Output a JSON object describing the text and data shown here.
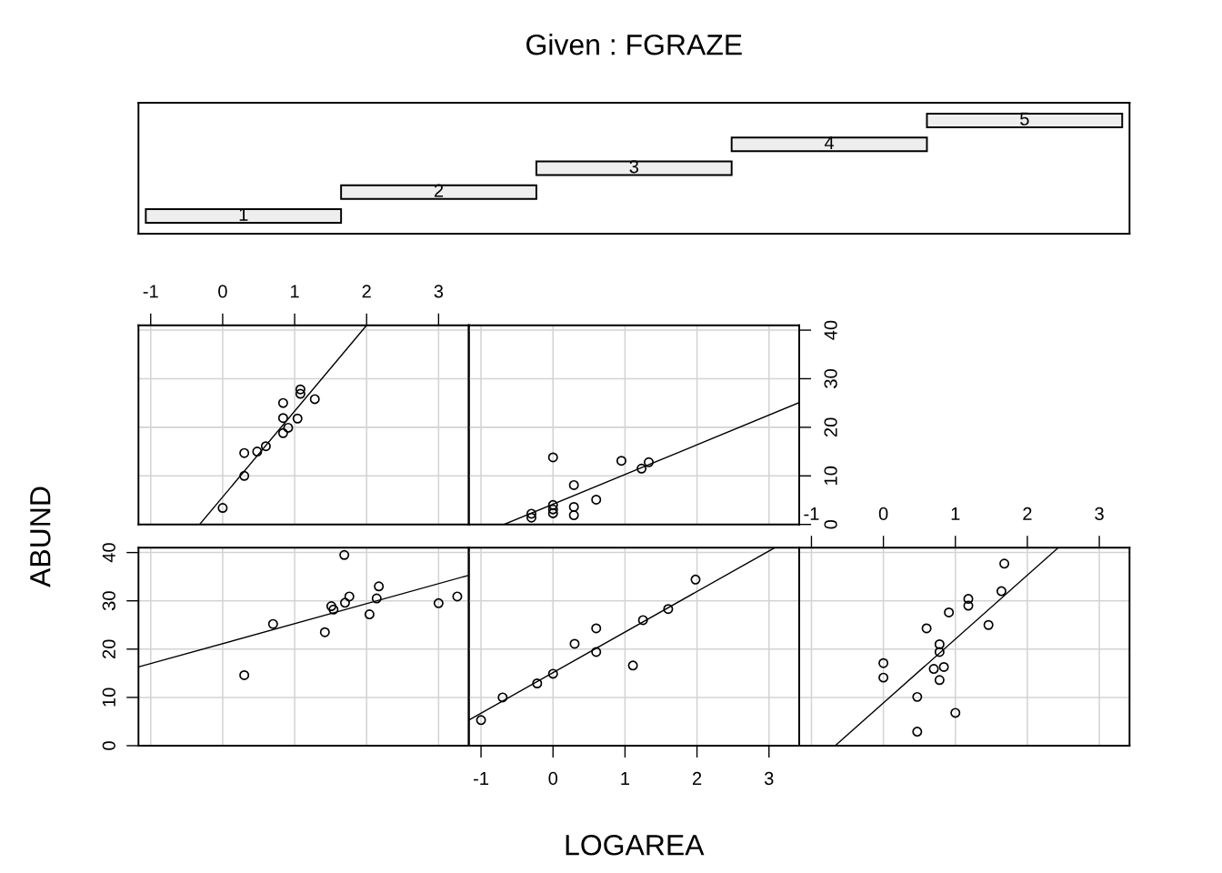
{
  "chart_data": [
    {
      "type": "other",
      "title": "Given : FGRAZE",
      "categories": [
        "1",
        "2",
        "3",
        "4",
        "5"
      ],
      "colors": [
        "#eeeeee",
        "#eeeeee",
        "#eeeeee",
        "#eeeeee",
        "#eeeeee"
      ]
    },
    {
      "type": "scatter",
      "grid": true,
      "tick_labels": "x",
      "xlim": [
        -1.17,
        3.42
      ],
      "xticks": [
        -1,
        0,
        1,
        2,
        3
      ],
      "ylim": [
        0,
        41
      ],
      "yticks": [
        0,
        10,
        20,
        30,
        40
      ],
      "series": [
        {
          "type": "scatter",
          "marker": "circle",
          "color": "#000000",
          "x": [
            1.08,
            1.08,
            1.28,
            0.84,
            0.84,
            1.04,
            0.91,
            0.84,
            0.6,
            0.48,
            0.3,
            0.3,
            0.0
          ],
          "values": [
            27.8,
            26.9,
            25.8,
            25.0,
            21.9,
            21.8,
            19.9,
            18.8,
            16.1,
            15.0,
            14.7,
            10.0,
            3.4
          ]
        },
        {
          "type": "line",
          "color": "#000000",
          "x": [
            -0.32,
            2.0
          ],
          "values": [
            0,
            41
          ]
        }
      ]
    },
    {
      "type": "scatter",
      "grid": true,
      "tick_labels": "y",
      "xlim": [
        -1.17,
        3.42
      ],
      "xticks": [
        -1,
        0,
        1,
        2,
        3
      ],
      "ylim": [
        0,
        41
      ],
      "yticks": [
        0,
        10,
        20,
        30,
        40
      ],
      "series": [
        {
          "type": "scatter",
          "marker": "circle",
          "color": "#000000",
          "x": [
            0.0,
            0.95,
            1.33,
            1.23,
            0.29,
            0.6,
            0.0,
            0.0,
            0.0,
            0.29,
            0.29,
            -0.3,
            -0.3
          ],
          "values": [
            13.8,
            13.1,
            12.8,
            11.5,
            8.1,
            5.1,
            4.0,
            3.1,
            2.3,
            3.6,
            1.9,
            2.2,
            1.4
          ]
        },
        {
          "type": "line",
          "color": "#000000",
          "x": [
            -0.68,
            3.42
          ],
          "values": [
            0,
            25.1
          ]
        }
      ]
    },
    {
      "type": "scatter",
      "grid": true,
      "tick_labels": "y",
      "ylabel": "ABUND",
      "xlim": [
        -1.17,
        3.42
      ],
      "xticks": [
        -1,
        0,
        1,
        2,
        3
      ],
      "ylim": [
        0,
        41
      ],
      "yticks": [
        0,
        10,
        20,
        30,
        40
      ],
      "series": [
        {
          "type": "scatter",
          "marker": "circle",
          "color": "#000000",
          "x": [
            1.69,
            0.7,
            0.3,
            1.42,
            1.51,
            1.54,
            1.7,
            1.76,
            2.04,
            2.14,
            2.17,
            3.0,
            3.26
          ],
          "values": [
            39.5,
            25.2,
            14.6,
            23.5,
            28.9,
            28.2,
            29.6,
            30.9,
            27.2,
            30.5,
            33.0,
            29.5,
            30.9
          ]
        },
        {
          "type": "line",
          "color": "#000000",
          "x": [
            -1.17,
            3.42
          ],
          "values": [
            16.3,
            35.3
          ]
        }
      ]
    },
    {
      "type": "scatter",
      "grid": true,
      "tick_labels": "x",
      "xlabel": "LOGAREA",
      "xlim": [
        -1.17,
        3.42
      ],
      "xticks": [
        -1,
        0,
        1,
        2,
        3
      ],
      "ylim": [
        0,
        41
      ],
      "yticks": [
        0,
        10,
        20,
        30,
        40
      ],
      "series": [
        {
          "type": "scatter",
          "marker": "circle",
          "color": "#000000",
          "x": [
            -1.0,
            -0.7,
            -0.22,
            0.0,
            0.3,
            0.6,
            0.6,
            1.11,
            1.25,
            1.6,
            1.98
          ],
          "values": [
            5.3,
            10.0,
            12.9,
            14.9,
            21.1,
            24.3,
            19.4,
            16.6,
            26.0,
            28.3,
            34.4
          ]
        },
        {
          "type": "line",
          "color": "#000000",
          "x": [
            -1.17,
            3.08
          ],
          "values": [
            5.3,
            41
          ]
        }
      ]
    },
    {
      "type": "scatter",
      "grid": true,
      "tick_labels": "x",
      "xlim": [
        -1.17,
        3.42
      ],
      "xticks": [
        -1,
        0,
        1,
        2,
        3
      ],
      "ylim": [
        0,
        41
      ],
      "yticks": [
        0,
        10,
        20,
        30,
        40
      ],
      "series": [
        {
          "type": "scatter",
          "marker": "circle",
          "color": "#000000",
          "x": [
            1.68,
            1.64,
            1.18,
            1.18,
            0.91,
            0.6,
            1.46,
            0.78,
            0.78,
            0.0,
            0.0,
            0.7,
            0.84,
            0.78,
            0.47,
            1.0,
            0.47
          ],
          "values": [
            37.7,
            32.0,
            30.4,
            29.0,
            27.6,
            24.3,
            25.0,
            21.0,
            19.4,
            17.1,
            14.1,
            15.9,
            16.3,
            13.6,
            10.1,
            6.8,
            2.9
          ]
        },
        {
          "type": "line",
          "color": "#000000",
          "x": [
            -0.67,
            2.43
          ],
          "values": [
            0,
            41
          ]
        }
      ]
    }
  ]
}
